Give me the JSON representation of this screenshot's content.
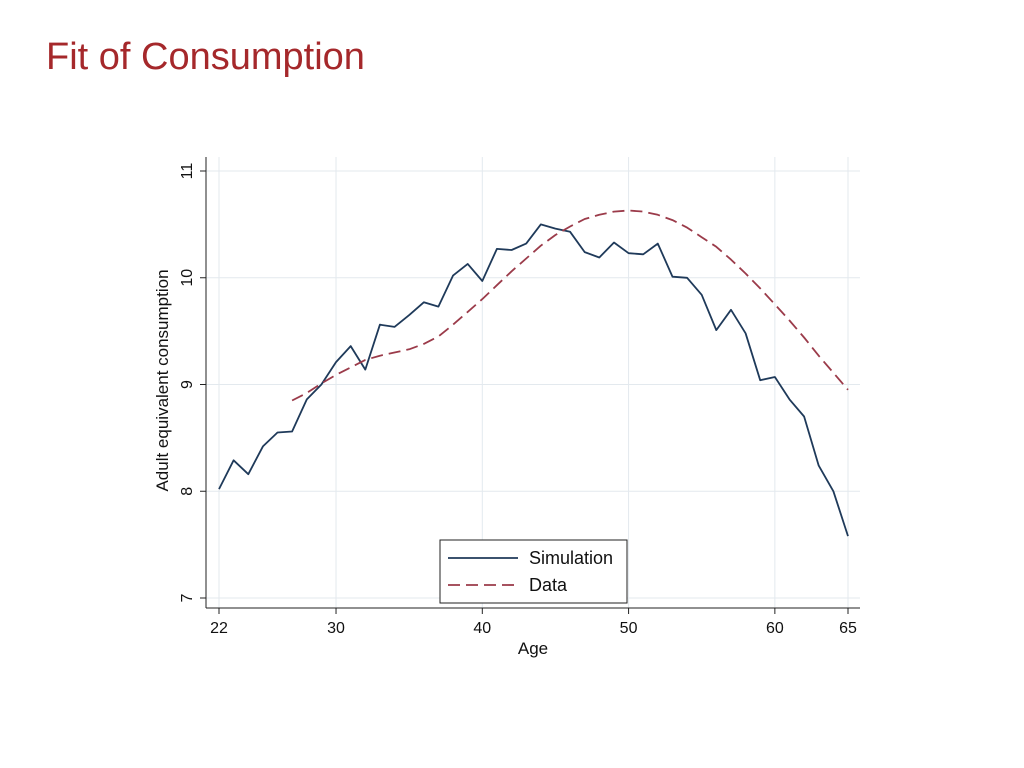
{
  "slide": {
    "title": "Fit of Consumption"
  },
  "chart_data": {
    "type": "line",
    "xlabel": "Age",
    "ylabel": "Adult equivalent consumption",
    "xlim": [
      22,
      65
    ],
    "ylim": [
      7,
      11
    ],
    "xticks": [
      22,
      30,
      40,
      50,
      60,
      65
    ],
    "yticks": [
      7,
      8,
      9,
      10,
      11
    ],
    "grid": true,
    "legend": "bottom-center",
    "series": [
      {
        "name": "Simulation",
        "style": "solid",
        "color": "#1f3a5a",
        "x": [
          22,
          23,
          24,
          25,
          26,
          27,
          28,
          29,
          30,
          31,
          32,
          33,
          34,
          35,
          36,
          37,
          38,
          39,
          40,
          41,
          42,
          43,
          44,
          45,
          46,
          47,
          48,
          49,
          50,
          51,
          52,
          53,
          54,
          55,
          56,
          57,
          58,
          59,
          60,
          61,
          62,
          63,
          64,
          65
        ],
        "values": [
          8.02,
          8.29,
          8.16,
          8.42,
          8.55,
          8.56,
          8.86,
          9.0,
          9.21,
          9.36,
          9.14,
          9.56,
          9.54,
          9.65,
          9.77,
          9.73,
          10.02,
          10.13,
          9.97,
          10.27,
          10.26,
          10.32,
          10.5,
          10.46,
          10.43,
          10.24,
          10.19,
          10.33,
          10.23,
          10.22,
          10.32,
          10.01,
          10.0,
          9.84,
          9.51,
          9.7,
          9.48,
          9.04,
          9.07,
          8.86,
          8.7,
          8.24,
          8.0,
          7.58
        ]
      },
      {
        "name": "Data",
        "style": "dashed",
        "color": "#9b3b4a",
        "x": [
          27,
          28,
          29,
          30,
          31,
          32,
          33,
          34,
          35,
          36,
          37,
          38,
          39,
          40,
          41,
          42,
          43,
          44,
          45,
          46,
          47,
          48,
          49,
          50,
          51,
          52,
          53,
          54,
          55,
          56,
          57,
          58,
          59,
          60,
          61,
          62,
          63,
          64,
          65
        ],
        "values": [
          8.85,
          8.92,
          9.01,
          9.09,
          9.16,
          9.23,
          9.27,
          9.3,
          9.33,
          9.38,
          9.45,
          9.56,
          9.68,
          9.8,
          9.93,
          10.06,
          10.18,
          10.3,
          10.4,
          10.48,
          10.55,
          10.59,
          10.62,
          10.63,
          10.62,
          10.59,
          10.54,
          10.47,
          10.38,
          10.29,
          10.17,
          10.04,
          9.9,
          9.75,
          9.6,
          9.44,
          9.27,
          9.11,
          8.95
        ]
      }
    ]
  }
}
